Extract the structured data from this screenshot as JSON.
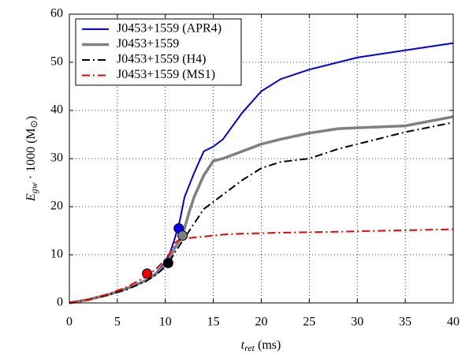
{
  "chart_data": {
    "type": "line",
    "x_label": {
      "main": "t",
      "sub": "ret",
      "rest": " (ms)"
    },
    "y_label": {
      "main": "E",
      "sub": "gw",
      "mid": " · 1000 (M",
      "sub2": "⊙",
      "end": ")"
    },
    "x": [
      0,
      2,
      4,
      6,
      8,
      9,
      10,
      10.5,
      11,
      11.5,
      12,
      12.5,
      13,
      14,
      15,
      16,
      18,
      20,
      22,
      25,
      28,
      30,
      35,
      40
    ],
    "series": [
      {
        "name": "J0453+1559 (APR4)",
        "color": "#0000ee",
        "linestyle": "solid",
        "linewidth": 2,
        "values": [
          0,
          0.7,
          1.7,
          3,
          4.8,
          6.2,
          8.5,
          10.5,
          13.5,
          17,
          22,
          24.5,
          27,
          31.5,
          32.5,
          34,
          39.5,
          44,
          46.5,
          48.5,
          50,
          51,
          52.5,
          54
        ],
        "marker": {
          "x": 11.4,
          "y": 15.5
        }
      },
      {
        "name": "J0453+1559",
        "color": "#808080",
        "linestyle": "solid",
        "linewidth": 3.5,
        "values": [
          0,
          0.7,
          1.7,
          3,
          4.7,
          6,
          8,
          9.5,
          11.5,
          13,
          15.5,
          19,
          22,
          26.5,
          29.5,
          30,
          31.5,
          33,
          34,
          35.3,
          36.2,
          36.4,
          36.8,
          38.7
        ],
        "marker": {
          "x": 11.8,
          "y": 14
        }
      },
      {
        "name": "J0453+1559 (H4)",
        "color": "#000000",
        "linestyle": "dashdot",
        "linewidth": 2,
        "values": [
          0,
          0.7,
          1.6,
          2.8,
          4.5,
          5.8,
          7.5,
          8.8,
          10.5,
          12,
          13.5,
          15,
          16.5,
          19.5,
          21,
          22.5,
          25.5,
          28,
          29.3,
          30,
          32,
          33,
          35.5,
          37.5
        ],
        "marker": {
          "x": 10.3,
          "y": 8.3
        }
      },
      {
        "name": "J0453+1559 (MS1)",
        "color": "#ee0000",
        "linestyle": "dashdot",
        "linewidth": 2,
        "values": [
          0,
          0.7,
          1.8,
          3.3,
          5.5,
          7,
          9,
          10.5,
          12.5,
          13.2,
          13.4,
          13.5,
          13.6,
          13.8,
          14,
          14.2,
          14.4,
          14.5,
          14.6,
          14.7,
          14.8,
          14.9,
          15.1,
          15.3
        ],
        "marker": {
          "x": 8.1,
          "y": 6.1
        }
      }
    ],
    "xlim": [
      0,
      40
    ],
    "xticks": [
      0,
      5,
      10,
      15,
      20,
      25,
      30,
      35,
      40
    ],
    "ylim": [
      0,
      60
    ],
    "yticks": [
      0,
      10,
      20,
      30,
      40,
      50,
      60
    ],
    "grid": true,
    "legend": "upper left"
  }
}
